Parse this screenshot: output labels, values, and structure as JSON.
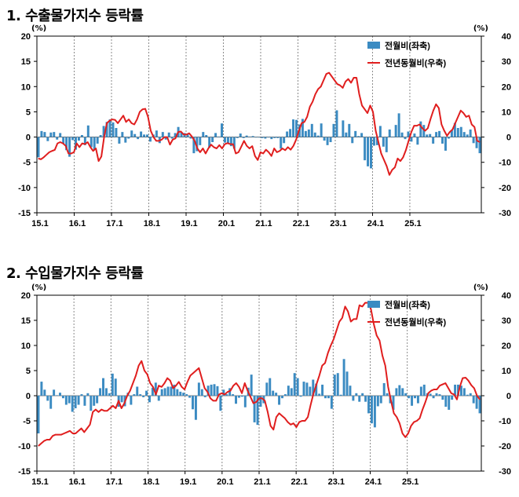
{
  "chart_data": [
    {
      "type": "bar",
      "title": "1. 수출물가지수 등락률",
      "left_unit": "(%)",
      "right_unit": "(%)",
      "x_tick_labels": [
        "15.1",
        "16.1",
        "17.1",
        "18.1",
        "19.1",
        "20.1",
        "21.1",
        "22.1",
        "23.1",
        "24.1",
        "25.1"
      ],
      "left_ylim": [
        -15,
        20
      ],
      "right_ylim": [
        -30,
        40
      ],
      "left_ticks": [
        20,
        15,
        10,
        5,
        0,
        -5,
        -10,
        -15
      ],
      "right_ticks": [
        40,
        30,
        20,
        10,
        0,
        -10,
        -20,
        -30
      ],
      "grid": "dashed vertical at January",
      "legend_position": "top-right",
      "colors": {
        "bar": "#3b8bc2",
        "line": "#e01e1e"
      },
      "series": [
        {
          "name": "전월비(좌축)",
          "kind": "bar",
          "axis": "left",
          "values": [
            -4,
            1.2,
            1,
            -0.8,
            0.9,
            1,
            -0.5,
            0.8,
            -1.3,
            -2.6,
            -3.9,
            -0.6,
            -2.5,
            -0.7,
            0.4,
            -1.6,
            2.3,
            -2,
            -2.5,
            -1.3,
            0.4,
            2.2,
            3,
            3.5,
            2.9,
            1.8,
            -1.3,
            1,
            -1.1,
            -0.3,
            1.3,
            0.6,
            -0.4,
            1.1,
            0.5,
            0.5,
            -0.9,
            0.5,
            1.3,
            -1.2,
            1,
            -0.5,
            0.9,
            -0.3,
            0.8,
            2,
            1,
            0.8,
            0.6,
            -0.3,
            -3.2,
            -2.8,
            -1.6,
            1,
            0.4,
            -2.1,
            -1,
            0.8,
            0.1,
            2.7,
            -1.1,
            -1.2,
            -1.8,
            -2.3,
            -0.2,
            0.7,
            -0.2,
            0.3,
            0.1,
            0.2,
            -0.1,
            -0.1,
            -0.2,
            -0.3,
            -0.1,
            -0.4,
            -0.2,
            -0.2,
            -2.3,
            -1.2,
            1.1,
            1.6,
            3.5,
            3.4,
            2.5,
            3.6,
            1.2,
            1.5,
            2.6,
            0.9,
            0.3,
            2.7,
            -0.7,
            -1.6,
            -1,
            2.6,
            5.3,
            0.1,
            3.3,
            0.9,
            2.6,
            -1.2,
            1.2,
            0.2,
            0.8,
            -4.6,
            -5.8,
            -6.2,
            -1.7,
            -1.6,
            2.2,
            -1.9,
            -3,
            1.5,
            0.1,
            2.4,
            4.7,
            0.9,
            -0.4,
            1.1,
            -0.9,
            0.7,
            -1.5,
            3.1,
            2.4,
            0.5,
            0.6,
            -1.3,
            1,
            1.2,
            -1.3,
            -2.7,
            -0.3,
            1.4,
            2.8,
            1.8,
            2,
            1,
            0.5,
            1.5,
            -1.2,
            -2.2,
            -3.2
          ]
        },
        {
          "name": "전년동월비(우축)",
          "kind": "line",
          "axis": "right",
          "values": [
            -8.5,
            -8.8,
            -8,
            -7,
            -6,
            -5.5,
            -5.1,
            -2.5,
            -2,
            -2.5,
            -3.5,
            -6.5,
            -6.5,
            -6,
            -2.5,
            -4,
            -2.5,
            -2.8,
            -2,
            -4,
            -5.5,
            -4.5,
            -9.5,
            -7.7,
            0,
            5.5,
            6.5,
            7,
            6.8,
            5.5,
            7,
            8.5,
            6,
            7,
            5.5,
            5,
            7,
            10,
            11,
            11.2,
            8,
            2.5,
            0,
            -1.5,
            -1.5,
            -1,
            0,
            0,
            -3,
            -1,
            -0.5,
            2,
            2.2,
            1,
            1,
            1.5,
            0.2,
            -1.5,
            -4.5,
            -6,
            -4.5,
            -6.5,
            -4.5,
            -3,
            -4,
            -4.5,
            -3.2,
            -4.5,
            -2.8,
            -2.4,
            -2.8,
            -2.8,
            -6.5,
            -6,
            -3.8,
            -1.5,
            -3.5,
            -4.5,
            -3.6,
            -7.5,
            -9.1,
            -6,
            -6.5,
            -5,
            -6,
            -7.5,
            -4.5,
            -6,
            -5.5,
            -4.5,
            -5.2,
            -4,
            -5,
            -3.5,
            -1,
            2.5,
            5.5,
            6,
            8,
            12,
            14,
            17,
            19,
            20,
            22.5,
            25,
            25.5,
            24,
            22.5,
            21,
            20.5,
            19.5,
            22,
            23,
            21.5,
            23.5,
            23.5,
            17,
            12.5,
            11,
            9.5,
            12.5,
            10,
            2.5,
            -2,
            -6.5,
            -9,
            -11.5,
            -15,
            -13,
            -12,
            -8.5,
            -9.5,
            -8,
            -5.2,
            -1.5,
            2,
            4.5,
            4.5,
            5,
            3.5,
            2.5,
            3.5,
            7.2,
            10.5,
            13,
            11.5,
            5,
            2.5,
            0.5,
            2,
            3,
            5.5,
            8,
            10.5,
            9.5,
            8,
            8.5,
            5,
            4,
            -1.5,
            -2
          ]
        }
      ]
    },
    {
      "type": "bar",
      "title": "2. 수입물가지수 등락률",
      "left_unit": "(%)",
      "right_unit": "(%)",
      "x_tick_labels": [
        "15.1",
        "16.1",
        "17.1",
        "18.1",
        "19.1",
        "20.1",
        "21.1",
        "22.1",
        "23.1",
        "24.1",
        "25.1"
      ],
      "left_ylim": [
        -15,
        20
      ],
      "right_ylim": [
        -30,
        40
      ],
      "left_ticks": [
        20,
        15,
        10,
        5,
        0,
        -5,
        -10,
        -15
      ],
      "right_ticks": [
        40,
        30,
        20,
        10,
        0,
        -10,
        -20,
        -30
      ],
      "grid": "dashed vertical at January",
      "legend_position": "top-right",
      "colors": {
        "bar": "#3b8bc2",
        "line": "#e01e1e"
      },
      "series": [
        {
          "name": "전월비(좌축)",
          "kind": "bar",
          "axis": "left",
          "values": [
            -7.5,
            2.8,
            1.2,
            -1,
            -2.6,
            1.2,
            0.1,
            0.6,
            -0.5,
            -1.8,
            -1.5,
            -3.2,
            -2.5,
            -1.8,
            0.3,
            -2,
            0.5,
            -3,
            -2,
            -1.5,
            1.5,
            3.5,
            1.5,
            0.5,
            4.4,
            3.4,
            -2.2,
            -1.3,
            -2.1,
            0.6,
            -1.8,
            0.3,
            1.8,
            0.3,
            -0.3,
            1,
            -1.3,
            1.6,
            2.6,
            -1,
            1.3,
            1.5,
            1.8,
            1.8,
            2.2,
            1.3,
            0.8,
            0.6,
            0.3,
            -0.4,
            -2.7,
            -4.8,
            2.6,
            1.3,
            -0.3,
            2,
            2.2,
            2.3,
            1.9,
            -3,
            1.2,
            0.3,
            1.5,
            0.3,
            -1.6,
            -0.4,
            -0.2,
            -2.3,
            1.6,
            4.2,
            -5.3,
            -5.8,
            -2.2,
            -1.5,
            2.6,
            3.5,
            1,
            0.6,
            -1.8,
            -0.5,
            0.3,
            2,
            1.5,
            4.5,
            3.5,
            -0.2,
            2.8,
            2.6,
            1.8,
            3.2,
            2.4,
            0.4,
            2.2,
            -0.5,
            -0.5,
            -2.6,
            4.2,
            4.5,
            0.2,
            7.3,
            4.8,
            2,
            -1,
            0.5,
            -1.2,
            0.5,
            -1.2,
            -3.5,
            -5.5,
            -6.3,
            -2.1,
            -1.5,
            2.5,
            0.5,
            -1.5,
            -2.8,
            1.5,
            2.1,
            1.5,
            0.5,
            -0.5,
            -2,
            -0.5,
            -1.5,
            1.8,
            2.2,
            0.5,
            0.4,
            -0.5,
            0.5,
            0.3,
            -0.8,
            -2.2,
            -2.8,
            -0.8,
            2.2,
            2.2,
            2,
            1.5,
            0.2,
            0.5,
            -1.5,
            -2.6,
            -3.5
          ]
        },
        {
          "name": "전년동월비(우축)",
          "kind": "line",
          "axis": "right",
          "values": [
            -20,
            -19,
            -18,
            -17.5,
            -17.5,
            -16,
            -15.5,
            -15.5,
            -15.5,
            -15,
            -14.5,
            -14,
            -15,
            -15,
            -14,
            -13,
            -14.5,
            -13,
            -11.5,
            -6.5,
            -5.5,
            -6.5,
            -5.5,
            -6,
            -6,
            -5,
            -4,
            -5,
            -2,
            -5,
            -3,
            0,
            2,
            5,
            8,
            12,
            13.8,
            10,
            8.5,
            5,
            3.5,
            0.5,
            4,
            3.5,
            5,
            7,
            6,
            3,
            4,
            5.5,
            3.5,
            2.5,
            5.5,
            8,
            9,
            10,
            11,
            7,
            3,
            1.5,
            -1,
            -2,
            -2,
            0.5,
            1,
            0.5,
            1.5,
            2,
            4,
            5,
            3.5,
            1,
            5,
            2,
            -0.5,
            -3,
            -2.5,
            -1,
            -1,
            -2,
            -6.5,
            -12,
            -13.5,
            -8.5,
            -7,
            -8,
            -9,
            -10.5,
            -11.5,
            -11,
            -12.5,
            -10.5,
            -10,
            -10,
            -8.5,
            -3.5,
            1,
            4.5,
            8,
            12,
            13,
            17,
            20,
            22.5,
            26,
            29.5,
            31,
            35.5,
            33.5,
            29.5,
            30.5,
            30.5,
            36,
            35.5,
            37,
            37,
            34.5,
            28.5,
            24,
            22,
            16,
            12,
            3.5,
            -2,
            -7,
            -8.5,
            -11,
            -15,
            -16.5,
            -15,
            -12,
            -10.5,
            -10,
            -9,
            -5.5,
            -2.5,
            1,
            2,
            2.5,
            2.5,
            4,
            4.5,
            5,
            3,
            1,
            0.5,
            -1.5,
            3.5,
            7,
            7.2,
            6,
            4.2,
            3,
            0,
            -1.5
          ]
        }
      ]
    }
  ]
}
